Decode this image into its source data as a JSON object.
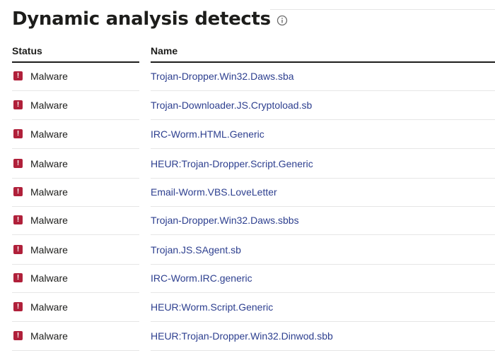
{
  "title": "Dynamic analysis detects",
  "icons": {
    "title_info": "info-icon",
    "status": "alert-icon"
  },
  "colors": {
    "alert": "#b0203a",
    "link": "#2d3f8f",
    "text": "#1d1d1b",
    "divider": "#e6e6e6"
  },
  "table": {
    "headers": {
      "status": "Status",
      "name": "Name"
    },
    "rows": [
      {
        "status": "Malware",
        "name": "Trojan-Dropper.Win32.Daws.sba"
      },
      {
        "status": "Malware",
        "name": "Trojan-Downloader.JS.Cryptoload.sb"
      },
      {
        "status": "Malware",
        "name": "IRC-Worm.HTML.Generic"
      },
      {
        "status": "Malware",
        "name": "HEUR:Trojan-Dropper.Script.Generic"
      },
      {
        "status": "Malware",
        "name": "Email-Worm.VBS.LoveLetter"
      },
      {
        "status": "Malware",
        "name": "Trojan-Dropper.Win32.Daws.sbbs"
      },
      {
        "status": "Malware",
        "name": "Trojan.JS.SAgent.sb"
      },
      {
        "status": "Malware",
        "name": "IRC-Worm.IRC.generic"
      },
      {
        "status": "Malware",
        "name": "HEUR:Worm.Script.Generic"
      },
      {
        "status": "Malware",
        "name": "HEUR:Trojan-Dropper.Win32.Dinwod.sbb"
      }
    ]
  }
}
